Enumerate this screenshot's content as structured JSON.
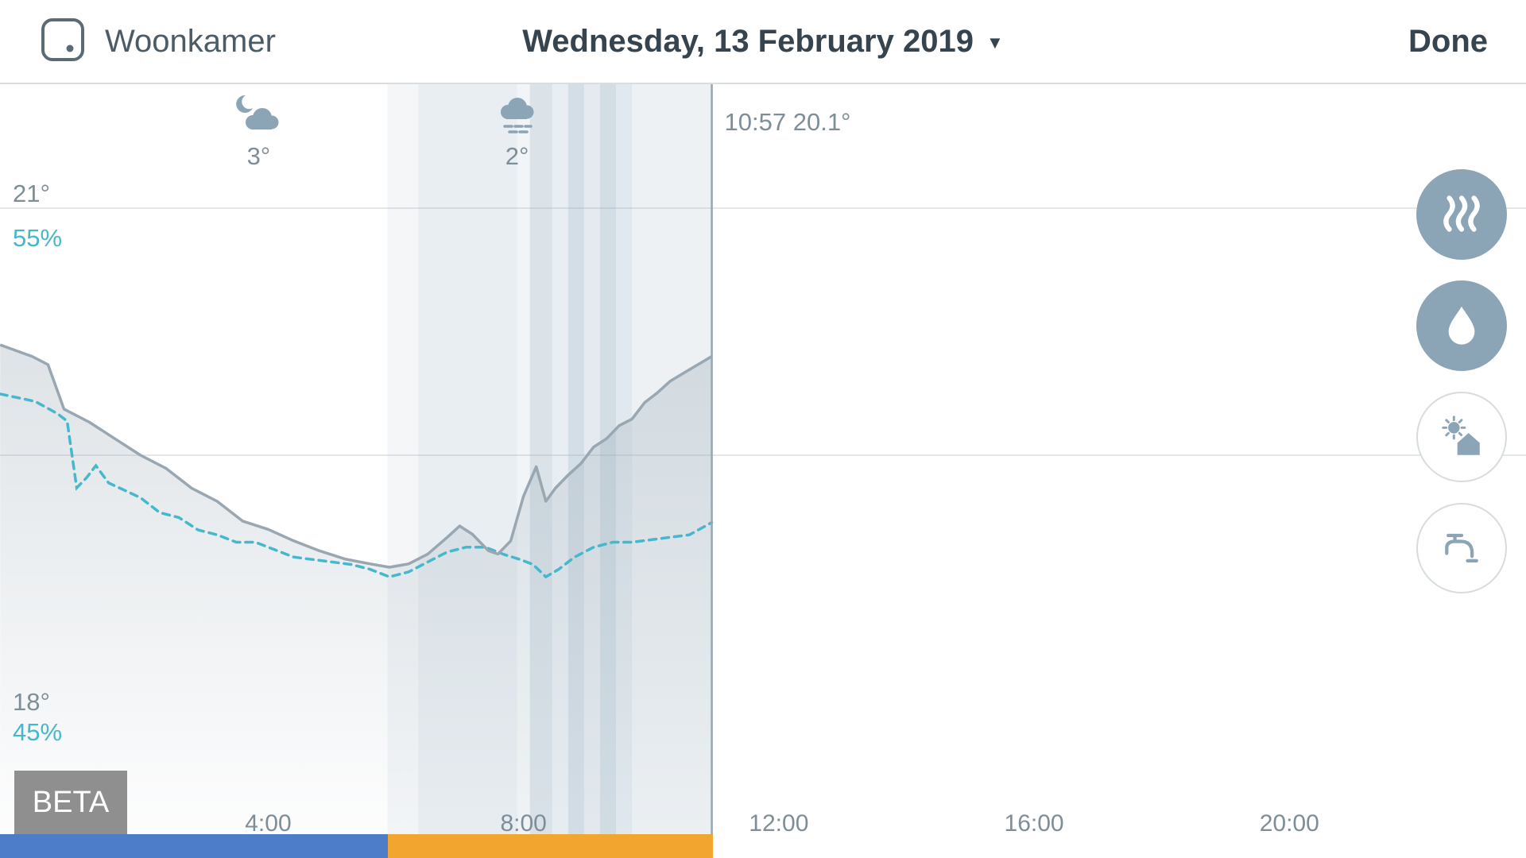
{
  "header": {
    "room_name": "Woonkamer",
    "date_label": "Wednesday, 13 February 2019",
    "dropdown_icon": "▼",
    "done_label": "Done"
  },
  "beta_badge": "BETA",
  "now_marker": {
    "time": "10:57",
    "temperature": "20.1°",
    "label": "10:57 20.1°",
    "hour": 10.95
  },
  "weather": [
    {
      "icon": "cloud-moon-icon",
      "temp": "3°",
      "hour": 3.85
    },
    {
      "icon": "cloud-rain-icon",
      "temp": "2°",
      "hour": 7.9
    }
  ],
  "side_buttons": [
    {
      "id": "heating",
      "icon": "heat-waves-icon",
      "style": "filled"
    },
    {
      "id": "humidity",
      "icon": "water-drop-icon",
      "style": "filled"
    },
    {
      "id": "home-sun",
      "icon": "house-sun-icon",
      "style": "outline"
    },
    {
      "id": "hot-water",
      "icon": "faucet-icon",
      "style": "outline"
    }
  ],
  "colors": {
    "accent_teal": "#45b8ce",
    "temp_line": "#98a7b1",
    "heating_band": "#8fa9bc",
    "gridline": "#e3e7ea",
    "schedule_blue": "#4d7cc9",
    "schedule_orange": "#f2a52f",
    "icon_blue_gray": "#8ba4b6"
  },
  "chart_data": {
    "type": "line",
    "title": "Room temperature and humidity history, Wednesday 13 February 2019",
    "x_axis": {
      "unit": "hour-of-day",
      "ticks": [
        {
          "label": "4:00",
          "hour": 4
        },
        {
          "label": "8:00",
          "hour": 8
        },
        {
          "label": "12:00",
          "hour": 12
        },
        {
          "label": "16:00",
          "hour": 16
        },
        {
          "label": "20:00",
          "hour": 20
        }
      ],
      "range_hours": [
        0,
        24
      ]
    },
    "y_axis_temperature": {
      "labels": [
        {
          "text": "21°",
          "value": 21
        },
        {
          "text": "18°",
          "value": 18
        }
      ],
      "gridline_temps": [
        21,
        19.5
      ],
      "range": [
        17.5,
        21.3
      ]
    },
    "y_axis_humidity": {
      "labels": [
        {
          "text": "55%",
          "value": 55
        },
        {
          "text": "45%",
          "value": 45
        }
      ],
      "range": [
        44,
        56
      ]
    },
    "now": {
      "hour": 10.95,
      "temperature": 20.1
    },
    "series": [
      {
        "name": "room-temperature",
        "unit": "°C",
        "style": "solid",
        "color": "#98a7b1",
        "points": [
          [
            -0.2,
            20.17
          ],
          [
            0.3,
            20.1
          ],
          [
            0.55,
            20.05
          ],
          [
            0.8,
            19.78
          ],
          [
            1.2,
            19.7
          ],
          [
            1.6,
            19.6
          ],
          [
            2.0,
            19.5
          ],
          [
            2.4,
            19.42
          ],
          [
            2.8,
            19.3
          ],
          [
            3.2,
            19.22
          ],
          [
            3.6,
            19.1
          ],
          [
            4.0,
            19.05
          ],
          [
            4.4,
            18.98
          ],
          [
            4.8,
            18.92
          ],
          [
            5.2,
            18.87
          ],
          [
            5.6,
            18.84
          ],
          [
            5.9,
            18.82
          ],
          [
            6.2,
            18.84
          ],
          [
            6.5,
            18.9
          ],
          [
            6.8,
            19.0
          ],
          [
            7.0,
            19.07
          ],
          [
            7.2,
            19.02
          ],
          [
            7.45,
            18.92
          ],
          [
            7.6,
            18.9
          ],
          [
            7.8,
            18.98
          ],
          [
            8.0,
            19.25
          ],
          [
            8.2,
            19.43
          ],
          [
            8.35,
            19.22
          ],
          [
            8.5,
            19.3
          ],
          [
            8.7,
            19.38
          ],
          [
            8.9,
            19.45
          ],
          [
            9.1,
            19.55
          ],
          [
            9.3,
            19.6
          ],
          [
            9.5,
            19.68
          ],
          [
            9.7,
            19.72
          ],
          [
            9.9,
            19.82
          ],
          [
            10.1,
            19.88
          ],
          [
            10.3,
            19.95
          ],
          [
            10.6,
            20.02
          ],
          [
            10.95,
            20.1
          ]
        ]
      },
      {
        "name": "room-humidity",
        "unit": "%",
        "style": "dashed",
        "color": "#45b8ce",
        "points": [
          [
            -0.2,
            51.85
          ],
          [
            0.35,
            51.7
          ],
          [
            0.7,
            51.45
          ],
          [
            0.85,
            51.3
          ],
          [
            1.0,
            49.95
          ],
          [
            1.15,
            50.15
          ],
          [
            1.3,
            50.4
          ],
          [
            1.5,
            50.05
          ],
          [
            1.75,
            49.9
          ],
          [
            2.0,
            49.75
          ],
          [
            2.3,
            49.45
          ],
          [
            2.6,
            49.35
          ],
          [
            2.9,
            49.1
          ],
          [
            3.2,
            49.0
          ],
          [
            3.5,
            48.85
          ],
          [
            3.8,
            48.85
          ],
          [
            4.1,
            48.7
          ],
          [
            4.4,
            48.55
          ],
          [
            4.7,
            48.5
          ],
          [
            5.0,
            48.45
          ],
          [
            5.3,
            48.4
          ],
          [
            5.6,
            48.3
          ],
          [
            5.9,
            48.15
          ],
          [
            6.2,
            48.25
          ],
          [
            6.5,
            48.45
          ],
          [
            6.8,
            48.65
          ],
          [
            7.1,
            48.75
          ],
          [
            7.4,
            48.75
          ],
          [
            7.7,
            48.6
          ],
          [
            7.95,
            48.5
          ],
          [
            8.15,
            48.4
          ],
          [
            8.35,
            48.15
          ],
          [
            8.55,
            48.3
          ],
          [
            8.8,
            48.55
          ],
          [
            9.1,
            48.75
          ],
          [
            9.4,
            48.85
          ],
          [
            9.7,
            48.85
          ],
          [
            10.0,
            48.9
          ],
          [
            10.3,
            48.95
          ],
          [
            10.6,
            49.0
          ],
          [
            10.95,
            49.25
          ]
        ]
      }
    ],
    "heating_activity_bands": [
      [
        5.87,
        6.35,
        0.1
      ],
      [
        6.35,
        7.9,
        0.2
      ],
      [
        7.9,
        8.1,
        0.12
      ],
      [
        8.1,
        8.45,
        0.32
      ],
      [
        8.45,
        8.7,
        0.2
      ],
      [
        8.7,
        8.95,
        0.38
      ],
      [
        8.95,
        9.2,
        0.24
      ],
      [
        9.2,
        9.45,
        0.4
      ],
      [
        9.45,
        9.7,
        0.26
      ],
      [
        9.7,
        10.97,
        0.16
      ]
    ],
    "schedule_bar": [
      {
        "start_hour": -0.25,
        "end_hour": 5.87,
        "color": "#4d7cc9"
      },
      {
        "start_hour": 5.87,
        "end_hour": 10.97,
        "color": "#f2a52f"
      }
    ]
  }
}
